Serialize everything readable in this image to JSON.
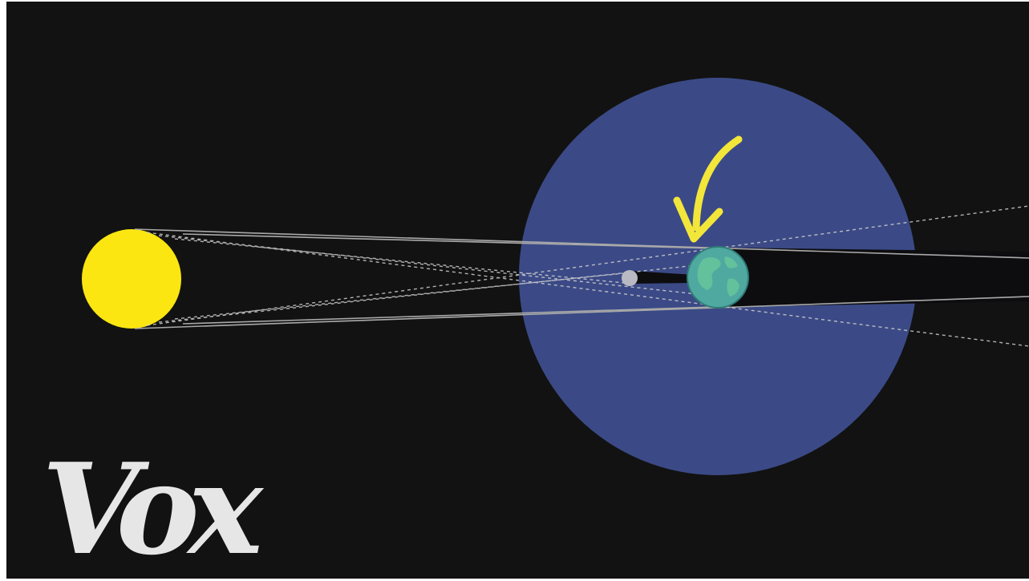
{
  "scene": {
    "description_free": true,
    "colors": {
      "background": "#121212",
      "sun": "#fbe611",
      "sphere_of_influence": "#3b4a86",
      "earth_ocean": "#4fa9a0",
      "earth_land": "#62c09a",
      "moon": "#b9b9c4",
      "arrow": "#f3e63a",
      "lines": "#bdbdbd",
      "logo": "#e6e6e6"
    },
    "icons": {
      "sun": "sun-icon",
      "earth": "earth-icon",
      "moon": "moon-icon",
      "arrow": "curved-arrow-icon"
    }
  },
  "logo": {
    "text": "Vox"
  }
}
